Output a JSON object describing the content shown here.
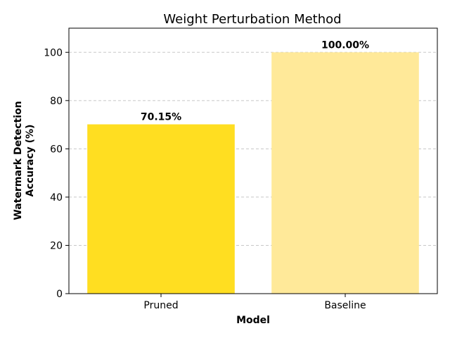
{
  "chart_data": {
    "type": "bar",
    "title": "Weight Perturbation Method",
    "xlabel": "Model",
    "ylabel_lines": [
      "Watermark Detection",
      "Accuracy (%)"
    ],
    "categories": [
      "Pruned",
      "Baseline"
    ],
    "values": [
      70.15,
      100.0
    ],
    "data_labels": [
      "70.15%",
      "100.00%"
    ],
    "colors": [
      "#ffde21",
      "#ffe999"
    ],
    "ylim": [
      0,
      110
    ],
    "yticks": [
      0,
      20,
      40,
      60,
      80,
      100
    ],
    "grid": "y-dashed",
    "legend": "none"
  }
}
